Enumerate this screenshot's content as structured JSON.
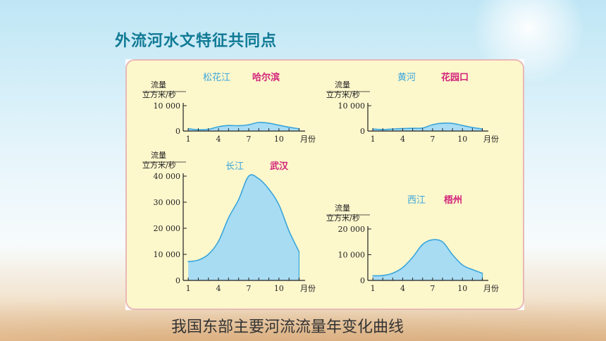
{
  "slide_title": "外流河水文特征共同点",
  "caption": "我国东部主要河流流量年变化曲线",
  "colors": {
    "title": "#107a95",
    "panel_bg": "#fdf7cc",
    "panel_border": "#e8b8b8",
    "fill": "#a8dcf3",
    "line": "#3aa6dc",
    "river_name": "#3aa6dc",
    "station_name": "#d2237a",
    "axis": "#222222"
  },
  "chart_data": [
    {
      "type": "area",
      "id": "songhua",
      "river": "松花江",
      "station": "哈尔滨",
      "y_title": [
        "流量",
        "立方米/秒"
      ],
      "x_unit": "月份",
      "ylim": [
        0,
        10000
      ],
      "y_ticks": [
        {
          "value": 0,
          "label": "0"
        },
        {
          "value": 10000,
          "label": "10 000"
        }
      ],
      "x_ticks": [
        1,
        4,
        7,
        10
      ],
      "x": [
        1,
        2,
        3,
        4,
        5,
        6,
        7,
        8,
        9,
        10,
        11,
        12
      ],
      "values": [
        900,
        500,
        700,
        1700,
        2200,
        2100,
        2500,
        3400,
        3100,
        2300,
        1500,
        900
      ]
    },
    {
      "type": "area",
      "id": "huanghe",
      "river": "黄河",
      "station": "花园口",
      "y_title": [
        "流量",
        "立方米/秒"
      ],
      "x_unit": "月份",
      "ylim": [
        0,
        10000
      ],
      "y_ticks": [
        {
          "value": 0,
          "label": "0"
        },
        {
          "value": 10000,
          "label": "10 000"
        }
      ],
      "x_ticks": [
        1,
        4,
        7,
        10
      ],
      "x": [
        1,
        2,
        3,
        4,
        5,
        6,
        7,
        8,
        9,
        10,
        11,
        12
      ],
      "values": [
        800,
        600,
        800,
        1000,
        1100,
        1200,
        2500,
        3100,
        3000,
        2200,
        1400,
        800
      ]
    },
    {
      "type": "area",
      "id": "changjiang",
      "river": "长江",
      "station": "武汉",
      "y_title": [
        "流量",
        "立方米/秒"
      ],
      "x_unit": "月份",
      "ylim": [
        0,
        40000
      ],
      "y_ticks": [
        {
          "value": 0,
          "label": "0"
        },
        {
          "value": 10000,
          "label": "10 000"
        },
        {
          "value": 20000,
          "label": "20 000"
        },
        {
          "value": 30000,
          "label": "30 000"
        },
        {
          "value": 40000,
          "label": "40 000"
        }
      ],
      "x_ticks": [
        1,
        4,
        7,
        10
      ],
      "x": [
        1,
        2,
        3,
        4,
        5,
        6,
        7,
        8,
        9,
        10,
        11,
        12
      ],
      "values": [
        7200,
        7800,
        10000,
        15000,
        24000,
        31000,
        40000,
        39000,
        35000,
        29000,
        19000,
        11000
      ]
    },
    {
      "type": "area",
      "id": "xijiang",
      "river": "西江",
      "station": "梧州",
      "y_title": [
        "流量",
        "立方米/秒"
      ],
      "x_unit": "月份",
      "ylim": [
        0,
        20000
      ],
      "y_ticks": [
        {
          "value": 0,
          "label": "0"
        },
        {
          "value": 10000,
          "label": "10 000"
        },
        {
          "value": 20000,
          "label": "20 000"
        }
      ],
      "x_ticks": [
        1,
        4,
        7,
        10
      ],
      "x": [
        1,
        2,
        3,
        4,
        5,
        6,
        7,
        8,
        9,
        10,
        11,
        12
      ],
      "values": [
        1800,
        1900,
        2800,
        5000,
        9000,
        14000,
        15800,
        15000,
        10000,
        6000,
        4200,
        2800
      ]
    }
  ]
}
